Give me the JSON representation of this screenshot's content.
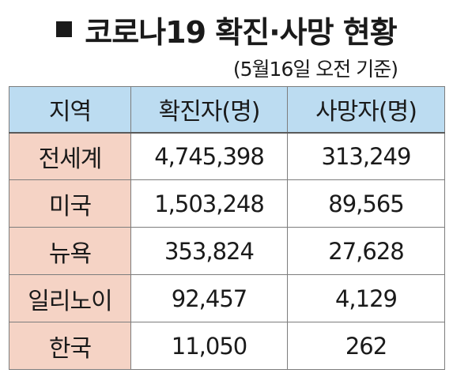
{
  "title": "코로나19 확진·사망 현황",
  "subtitle": "(5월16일 오전 기준)",
  "table": {
    "headers": [
      "지역",
      "확진자(명)",
      "사망자(명)"
    ],
    "rows": [
      {
        "region": "전세계",
        "confirmed": "4,745,398",
        "deaths": "313,249"
      },
      {
        "region": "미국",
        "confirmed": "1,503,248",
        "deaths": "89,565"
      },
      {
        "region": "뉴욕",
        "confirmed": "353,824",
        "deaths": "27,628"
      },
      {
        "region": "일리노이",
        "confirmed": "92,457",
        "deaths": "4,129"
      },
      {
        "region": "한국",
        "confirmed": "11,050",
        "deaths": "262"
      }
    ]
  },
  "colors": {
    "header_bg": "#bcdcf1",
    "region_bg": "#f5d3c5",
    "border": "#7d7d7d",
    "text": "#1a1a1a"
  }
}
